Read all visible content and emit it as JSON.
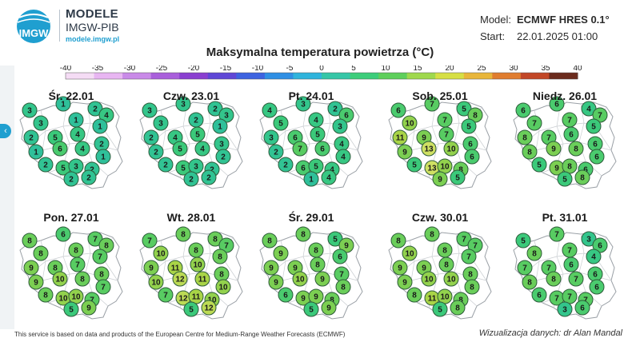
{
  "brand": {
    "logo_text": "IMGW",
    "line1": "MODELE",
    "line2": "IMGW-PIB",
    "url": "modele.imgw.pl"
  },
  "meta": {
    "model_label": "Model:",
    "model_value": "ECMWF HRES 0.1°",
    "start_label": "Start:",
    "start_value": "22.01.2025 01:00"
  },
  "title": "Maksymalna temperatura powietrza (°C)",
  "scale": {
    "ticks": [
      "-40",
      "-35",
      "-30",
      "-25",
      "-20",
      "-15",
      "-10",
      "-5",
      "0",
      "5",
      "10",
      "15",
      "20",
      "25",
      "30",
      "35",
      "40"
    ],
    "colors": [
      "#f5dcf5",
      "#e8b6f2",
      "#c98ae8",
      "#a95fdb",
      "#8a3fd0",
      "#5f47d6",
      "#3d63e0",
      "#2f8fe4",
      "#2fb4dc",
      "#35c6a7",
      "#3ccd7a",
      "#5ecf5b",
      "#9fd84d",
      "#d6df44",
      "#e8b63a",
      "#e07d2f",
      "#c24727",
      "#6b2b1c"
    ]
  },
  "icons": {
    "nav": "chevron-left-icon"
  },
  "days": [
    {
      "label": "Śr. 22.01",
      "values": [
        3,
        1,
        2,
        4,
        3,
        1,
        1,
        2,
        5,
        4,
        2,
        1,
        6,
        4,
        1,
        2,
        5,
        3,
        2,
        2,
        2
      ]
    },
    {
      "label": "Czw. 23.01",
      "values": [
        3,
        3,
        2,
        3,
        3,
        2,
        1,
        2,
        4,
        5,
        3,
        2,
        5,
        4,
        2,
        2,
        5,
        3,
        2,
        2,
        2
      ]
    },
    {
      "label": "Pt. 24.01",
      "values": [
        4,
        3,
        2,
        6,
        5,
        4,
        3,
        3,
        6,
        5,
        4,
        2,
        7,
        6,
        4,
        2,
        6,
        5,
        4,
        4,
        1
      ]
    },
    {
      "label": "Sob. 25.01",
      "values": [
        6,
        7,
        5,
        8,
        10,
        7,
        5,
        11,
        9,
        7,
        6,
        9,
        13,
        10,
        6,
        5,
        13,
        10,
        8,
        5,
        9
      ]
    },
    {
      "label": "Niedz. 26.01",
      "values": [
        6,
        6,
        4,
        7,
        7,
        7,
        5,
        8,
        7,
        6,
        6,
        8,
        9,
        8,
        6,
        5,
        9,
        8,
        6,
        8,
        5
      ]
    },
    {
      "label": "Pon. 27.01",
      "values": [
        8,
        6,
        7,
        8,
        8,
        8,
        7,
        9,
        8,
        7,
        8,
        9,
        10,
        8,
        7,
        8,
        10,
        10,
        7,
        9,
        5
      ]
    },
    {
      "label": "Wt. 28.01",
      "values": [
        7,
        8,
        8,
        7,
        10,
        8,
        8,
        9,
        11,
        10,
        8,
        10,
        12,
        11,
        10,
        7,
        12,
        11,
        10,
        12,
        5
      ]
    },
    {
      "label": "Śr. 29.01",
      "values": [
        8,
        8,
        5,
        9,
        9,
        8,
        6,
        9,
        9,
        8,
        7,
        9,
        10,
        9,
        8,
        6,
        9,
        9,
        8,
        9,
        5
      ]
    },
    {
      "label": "Czw. 30.01",
      "values": [
        8,
        8,
        7,
        7,
        10,
        8,
        7,
        9,
        9,
        8,
        8,
        9,
        10,
        10,
        8,
        8,
        11,
        10,
        8,
        8,
        5
      ]
    },
    {
      "label": "Pt. 31.01",
      "values": [
        5,
        7,
        3,
        6,
        8,
        7,
        4,
        7,
        7,
        6,
        6,
        8,
        8,
        7,
        6,
        6,
        7,
        7,
        7,
        6,
        3
      ]
    }
  ],
  "footer": "This service is based on data and products of the European Centre for Medium-Range Weather Forecasts (ECMWF)",
  "credit": "Wizualizacja danych: dr Alan Mandal"
}
